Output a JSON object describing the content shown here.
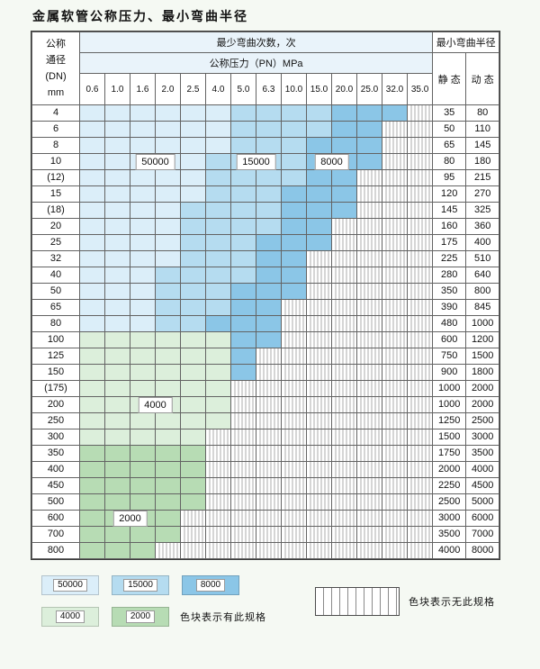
{
  "title": "金属软管公称压力、最小弯曲半径",
  "colors": {
    "50000": "#dbeef9",
    "15000": "#b5dcf0",
    "8000": "#8bc6e7",
    "4000": "#dcefdb",
    "2000": "#b7dcb4",
    "na_stripe": "#ababab",
    "border": "#636363"
  },
  "chart_data": {
    "type": "table",
    "title": "金属软管公称压力、最小弯曲半径",
    "header": {
      "dn_lines": [
        "公称",
        "通径",
        "(DN)",
        "mm"
      ],
      "bend_cycles": "最少弯曲次数，次",
      "pressure": "公称压力（PN）MPa",
      "radius": "最小弯曲半径",
      "static": "静 态",
      "dynamic": "动 态"
    },
    "pressures": [
      "0.6",
      "1.0",
      "1.6",
      "2.0",
      "2.5",
      "4.0",
      "5.0",
      "6.3",
      "10.0",
      "15.0",
      "20.0",
      "25.0",
      "32.0",
      "35.0"
    ],
    "rows": [
      {
        "dn": "4",
        "bands": [
          [
            "50000",
            6
          ],
          [
            "15000",
            4
          ],
          [
            "8000",
            3
          ],
          [
            "na",
            1
          ]
        ],
        "static": "35",
        "dynamic": "80"
      },
      {
        "dn": "6",
        "bands": [
          [
            "50000",
            6
          ],
          [
            "15000",
            4
          ],
          [
            "8000",
            2
          ],
          [
            "na",
            2
          ]
        ],
        "static": "50",
        "dynamic": "110"
      },
      {
        "dn": "8",
        "bands": [
          [
            "50000",
            6
          ],
          [
            "15000",
            3
          ],
          [
            "8000",
            3
          ],
          [
            "na",
            2
          ]
        ],
        "static": "65",
        "dynamic": "145"
      },
      {
        "dn": "10",
        "bands": [
          [
            "50000",
            5
          ],
          [
            "15000",
            4
          ],
          [
            "8000",
            3
          ],
          [
            "na",
            2
          ]
        ],
        "static": "80",
        "dynamic": "180"
      },
      {
        "dn": "(12)",
        "bands": [
          [
            "50000",
            5
          ],
          [
            "15000",
            4
          ],
          [
            "8000",
            2
          ],
          [
            "na",
            3
          ]
        ],
        "static": "95",
        "dynamic": "215"
      },
      {
        "dn": "15",
        "bands": [
          [
            "50000",
            5
          ],
          [
            "15000",
            3
          ],
          [
            "8000",
            3
          ],
          [
            "na",
            3
          ]
        ],
        "static": "120",
        "dynamic": "270"
      },
      {
        "dn": "(18)",
        "bands": [
          [
            "50000",
            4
          ],
          [
            "15000",
            4
          ],
          [
            "8000",
            3
          ],
          [
            "na",
            3
          ]
        ],
        "static": "145",
        "dynamic": "325"
      },
      {
        "dn": "20",
        "bands": [
          [
            "50000",
            4
          ],
          [
            "15000",
            4
          ],
          [
            "8000",
            2
          ],
          [
            "na",
            4
          ]
        ],
        "static": "160",
        "dynamic": "360"
      },
      {
        "dn": "25",
        "bands": [
          [
            "50000",
            4
          ],
          [
            "15000",
            3
          ],
          [
            "8000",
            3
          ],
          [
            "na",
            4
          ]
        ],
        "static": "175",
        "dynamic": "400"
      },
      {
        "dn": "32",
        "bands": [
          [
            "50000",
            4
          ],
          [
            "15000",
            3
          ],
          [
            "8000",
            2
          ],
          [
            "na",
            5
          ]
        ],
        "static": "225",
        "dynamic": "510"
      },
      {
        "dn": "40",
        "bands": [
          [
            "50000",
            3
          ],
          [
            "15000",
            4
          ],
          [
            "8000",
            2
          ],
          [
            "na",
            5
          ]
        ],
        "static": "280",
        "dynamic": "640"
      },
      {
        "dn": "50",
        "bands": [
          [
            "50000",
            3
          ],
          [
            "15000",
            3
          ],
          [
            "8000",
            3
          ],
          [
            "na",
            5
          ]
        ],
        "static": "350",
        "dynamic": "800"
      },
      {
        "dn": "65",
        "bands": [
          [
            "50000",
            3
          ],
          [
            "15000",
            3
          ],
          [
            "8000",
            2
          ],
          [
            "na",
            6
          ]
        ],
        "static": "390",
        "dynamic": "845"
      },
      {
        "dn": "80",
        "bands": [
          [
            "50000",
            3
          ],
          [
            "15000",
            2
          ],
          [
            "8000",
            3
          ],
          [
            "na",
            6
          ]
        ],
        "static": "480",
        "dynamic": "1000"
      },
      {
        "dn": "100",
        "bands": [
          [
            "4000",
            6
          ],
          [
            "8000",
            2
          ],
          [
            "na",
            6
          ]
        ],
        "static": "600",
        "dynamic": "1200"
      },
      {
        "dn": "125",
        "bands": [
          [
            "4000",
            6
          ],
          [
            "8000",
            1
          ],
          [
            "na",
            7
          ]
        ],
        "static": "750",
        "dynamic": "1500"
      },
      {
        "dn": "150",
        "bands": [
          [
            "4000",
            6
          ],
          [
            "8000",
            1
          ],
          [
            "na",
            7
          ]
        ],
        "static": "900",
        "dynamic": "1800"
      },
      {
        "dn": "(175)",
        "bands": [
          [
            "4000",
            6
          ],
          [
            "na",
            8
          ]
        ],
        "static": "1000",
        "dynamic": "2000"
      },
      {
        "dn": "200",
        "bands": [
          [
            "4000",
            6
          ],
          [
            "na",
            8
          ]
        ],
        "static": "1000",
        "dynamic": "2000"
      },
      {
        "dn": "250",
        "bands": [
          [
            "4000",
            6
          ],
          [
            "na",
            8
          ]
        ],
        "static": "1250",
        "dynamic": "2500"
      },
      {
        "dn": "300",
        "bands": [
          [
            "4000",
            5
          ],
          [
            "na",
            9
          ]
        ],
        "static": "1500",
        "dynamic": "3000"
      },
      {
        "dn": "350",
        "bands": [
          [
            "2000",
            5
          ],
          [
            "na",
            9
          ]
        ],
        "static": "1750",
        "dynamic": "3500"
      },
      {
        "dn": "400",
        "bands": [
          [
            "2000",
            5
          ],
          [
            "na",
            9
          ]
        ],
        "static": "2000",
        "dynamic": "4000"
      },
      {
        "dn": "450",
        "bands": [
          [
            "2000",
            5
          ],
          [
            "na",
            9
          ]
        ],
        "static": "2250",
        "dynamic": "4500"
      },
      {
        "dn": "500",
        "bands": [
          [
            "2000",
            5
          ],
          [
            "na",
            9
          ]
        ],
        "static": "2500",
        "dynamic": "5000"
      },
      {
        "dn": "600",
        "bands": [
          [
            "2000",
            4
          ],
          [
            "na",
            10
          ]
        ],
        "static": "3000",
        "dynamic": "6000"
      },
      {
        "dn": "700",
        "bands": [
          [
            "2000",
            4
          ],
          [
            "na",
            10
          ]
        ],
        "static": "3500",
        "dynamic": "7000"
      },
      {
        "dn": "800",
        "bands": [
          [
            "2000",
            3
          ],
          [
            "na",
            11
          ]
        ],
        "static": "4000",
        "dynamic": "8000"
      }
    ],
    "float_labels": [
      {
        "text": "50000",
        "row": 3,
        "col": 2,
        "span": 2
      },
      {
        "text": "15000",
        "row": 3,
        "col": 6,
        "span": 2
      },
      {
        "text": "8000",
        "row": 3,
        "col": 9,
        "span": 2
      },
      {
        "text": "4000",
        "row": 18,
        "col": 2,
        "span": 2
      },
      {
        "text": "2000",
        "row": 25,
        "col": 1,
        "span": 2
      }
    ]
  },
  "legend": {
    "rows": [
      [
        {
          "label": "50000",
          "code": "50000"
        },
        {
          "label": "15000",
          "code": "15000"
        },
        {
          "label": "8000",
          "code": "8000"
        }
      ],
      [
        {
          "label": "4000",
          "code": "4000"
        },
        {
          "label": "2000",
          "code": "2000"
        }
      ]
    ],
    "has_spec_text": "色块表示有此规格",
    "no_spec_text": "色块表示无此规格"
  }
}
